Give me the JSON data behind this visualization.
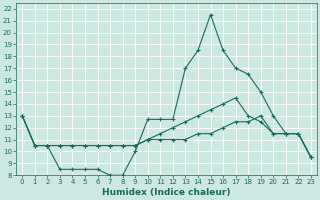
{
  "title": "",
  "xlabel": "Humidex (Indice chaleur)",
  "xlim": [
    -0.5,
    23.5
  ],
  "ylim": [
    8,
    22.5
  ],
  "xticks": [
    0,
    1,
    2,
    3,
    4,
    5,
    6,
    7,
    8,
    9,
    10,
    11,
    12,
    13,
    14,
    15,
    16,
    17,
    18,
    19,
    20,
    21,
    22,
    23
  ],
  "yticks": [
    8,
    9,
    10,
    11,
    12,
    13,
    14,
    15,
    16,
    17,
    18,
    19,
    20,
    21,
    22
  ],
  "bg_color": "#cce8e0",
  "grid_color": "#aad4cc",
  "line_color": "#1a6b5a",
  "lines": [
    {
      "x": [
        0,
        1,
        2,
        3,
        4,
        5,
        6,
        7,
        8,
        9,
        10,
        11,
        12,
        13,
        14,
        15,
        16,
        17,
        18,
        19,
        20,
        21,
        22,
        23
      ],
      "y": [
        13,
        10.5,
        10.5,
        8.5,
        8.5,
        8.5,
        8.5,
        8.0,
        8.0,
        10.0,
        12.7,
        12.7,
        12.7,
        17.0,
        18.5,
        21.5,
        18.5,
        17.0,
        16.5,
        15.0,
        13.0,
        11.5,
        11.5,
        9.5
      ]
    },
    {
      "x": [
        0,
        1,
        2,
        3,
        4,
        5,
        6,
        7,
        8,
        9,
        10,
        11,
        12,
        13,
        14,
        15,
        16,
        17,
        18,
        19,
        20,
        21,
        22,
        23
      ],
      "y": [
        13,
        10.5,
        10.5,
        10.5,
        10.5,
        10.5,
        10.5,
        10.5,
        10.5,
        10.5,
        11.0,
        11.5,
        12.0,
        12.5,
        13.0,
        13.5,
        14.0,
        14.5,
        13.0,
        12.5,
        11.5,
        11.5,
        11.5,
        9.5
      ]
    },
    {
      "x": [
        0,
        1,
        2,
        3,
        4,
        5,
        6,
        7,
        8,
        9,
        10,
        11,
        12,
        13,
        14,
        15,
        16,
        17,
        18,
        19,
        20,
        21,
        22,
        23
      ],
      "y": [
        13,
        10.5,
        10.5,
        10.5,
        10.5,
        10.5,
        10.5,
        10.5,
        10.5,
        10.5,
        11.0,
        11.0,
        11.0,
        11.0,
        11.5,
        11.5,
        12.0,
        12.5,
        12.5,
        13.0,
        11.5,
        11.5,
        11.5,
        9.5
      ]
    }
  ],
  "xlabel_fontsize": 6.5,
  "tick_fontsize": 5.0,
  "linewidth": 0.8,
  "marker_size": 3
}
